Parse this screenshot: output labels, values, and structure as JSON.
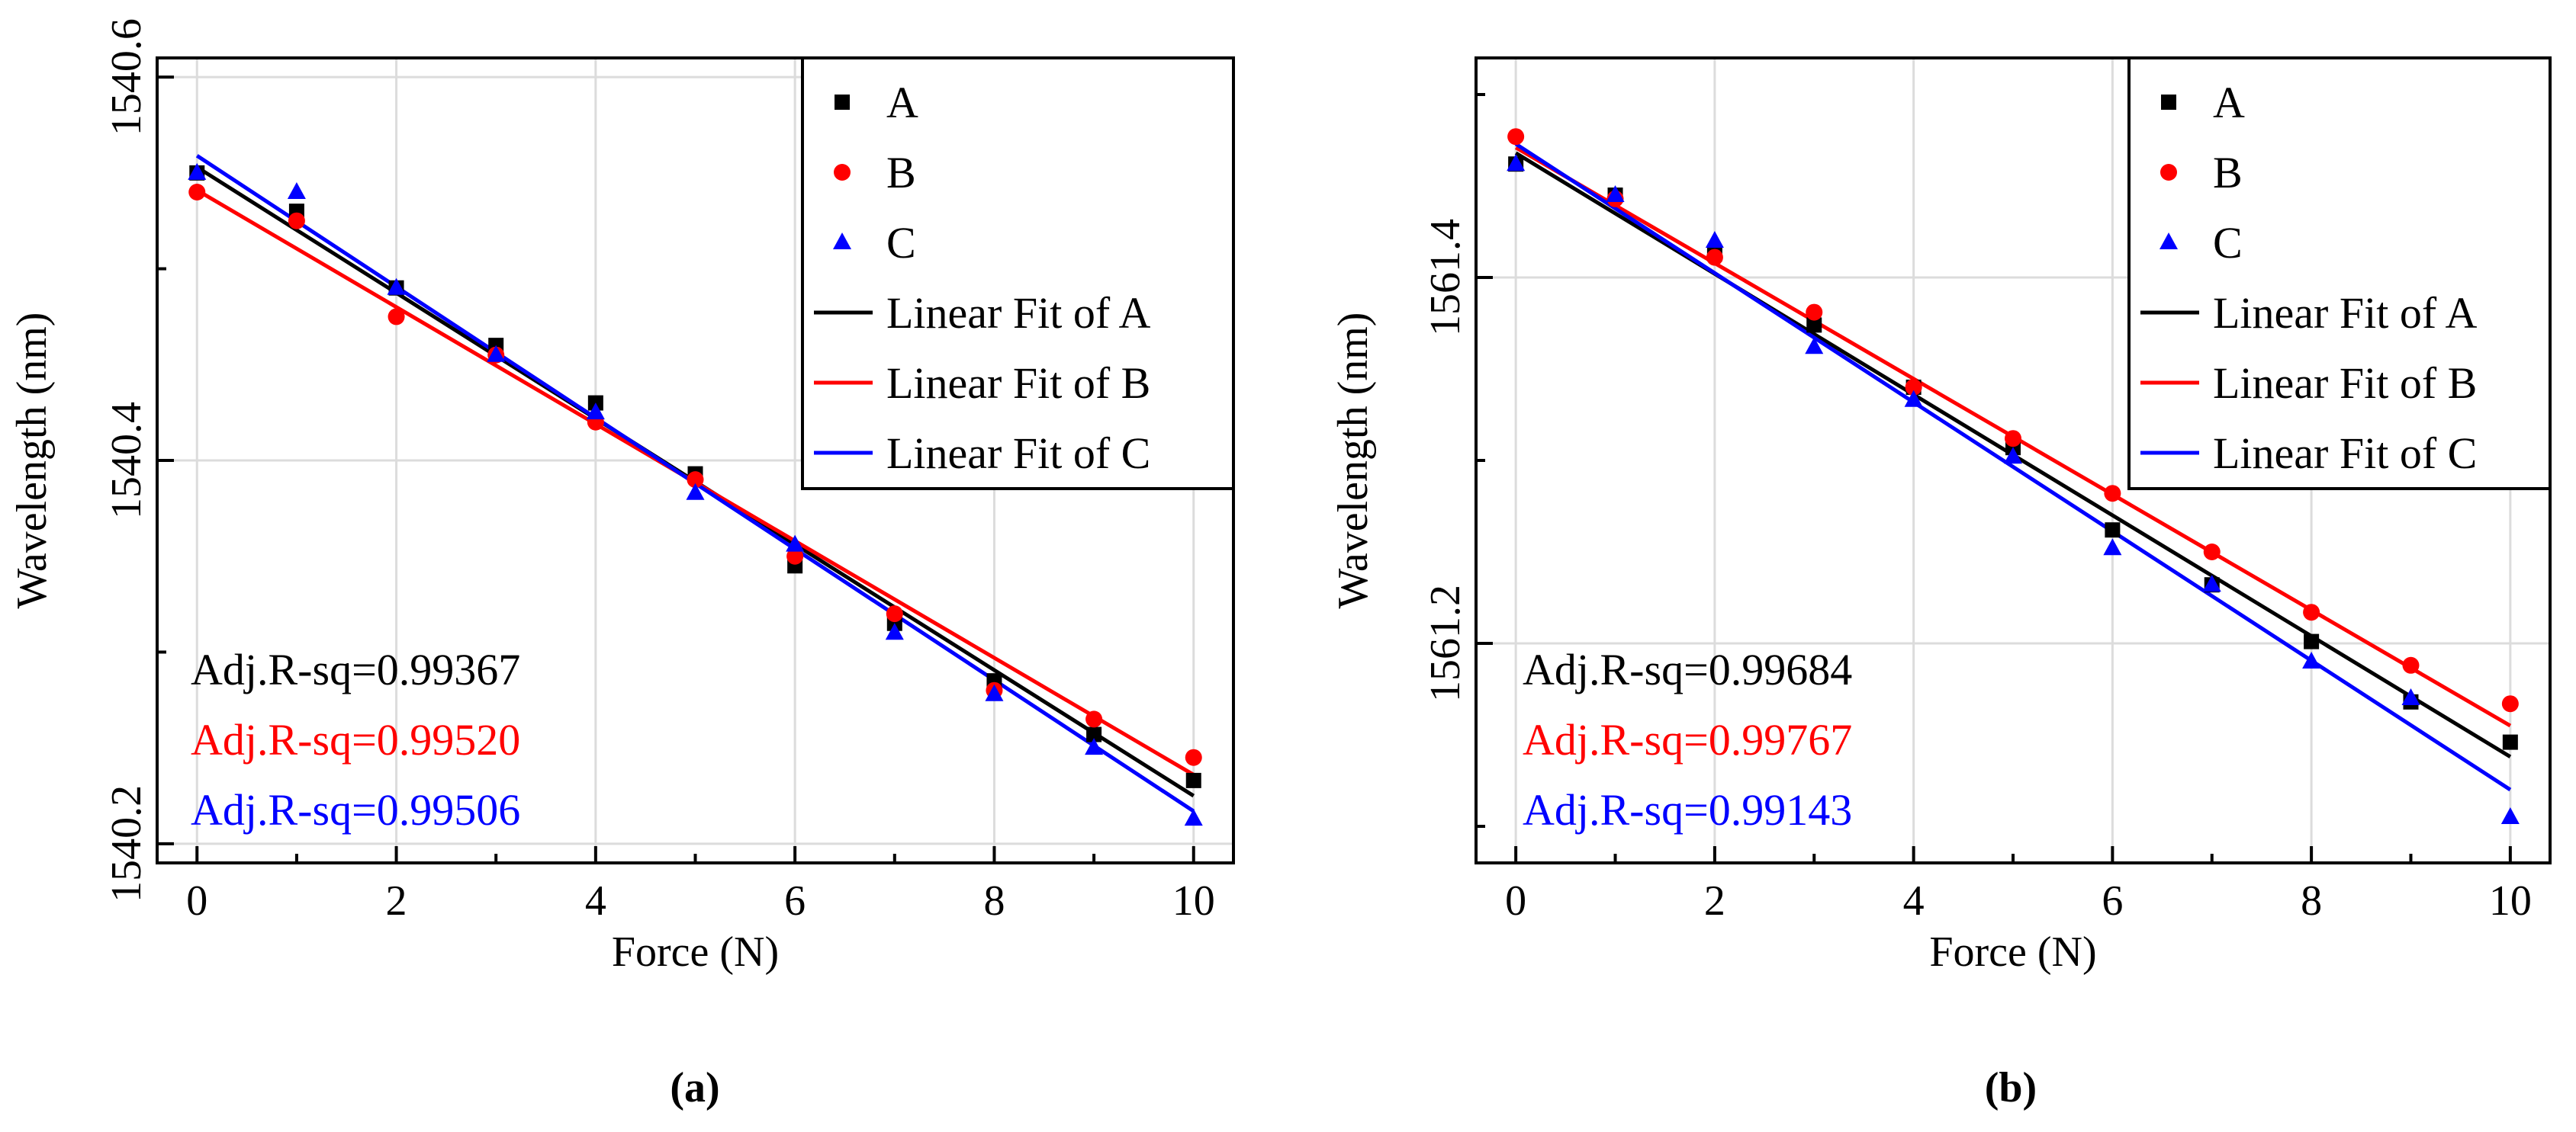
{
  "chart_data": [
    {
      "type": "scatter",
      "panel_label": "(a)",
      "xlabel": "Force (N)",
      "ylabel": "Wavelength (nm)",
      "xlim": [
        -0.4,
        10.4
      ],
      "ylim": [
        1540.19,
        1540.61
      ],
      "xticks": [
        0,
        2,
        4,
        6,
        8,
        10
      ],
      "xticklabels": [
        "0",
        "2",
        "4",
        "6",
        "8",
        "10"
      ],
      "yticks": [
        1540.2,
        1540.4,
        1540.6
      ],
      "yticklabels": [
        "1540.2",
        "1540.4",
        "1540.6"
      ],
      "grid": true,
      "legend_position": "top-right",
      "x": [
        0,
        1,
        2,
        3,
        4,
        5,
        6,
        7,
        8,
        9,
        10
      ],
      "series": [
        {
          "name": "A",
          "marker": "square",
          "color": "#000000",
          "values": [
            1540.55,
            1540.53,
            1540.49,
            1540.46,
            1540.43,
            1540.393,
            1540.345,
            1540.315,
            1540.285,
            1540.257,
            1540.233
          ]
        },
        {
          "name": "B",
          "marker": "circle",
          "color": "#ff0000",
          "values": [
            1540.54,
            1540.525,
            1540.475,
            1540.455,
            1540.42,
            1540.39,
            1540.35,
            1540.32,
            1540.28,
            1540.265,
            1540.245
          ]
        },
        {
          "name": "C",
          "marker": "triangle",
          "color": "#0000ff",
          "values": [
            1540.55,
            1540.54,
            1540.49,
            1540.455,
            1540.425,
            1540.383,
            1540.356,
            1540.31,
            1540.278,
            1540.25,
            1540.213
          ]
        }
      ],
      "fits": [
        {
          "name": "Linear Fit of A",
          "color": "#000000",
          "start": [
            0,
            1540.553
          ],
          "end": [
            10,
            1540.225
          ]
        },
        {
          "name": "Linear Fit of B",
          "color": "#ff0000",
          "start": [
            0,
            1540.541
          ],
          "end": [
            10,
            1540.236
          ]
        },
        {
          "name": "Linear Fit of C",
          "color": "#0000ff",
          "start": [
            0,
            1540.559
          ],
          "end": [
            10,
            1540.217
          ]
        }
      ],
      "annotations": [
        {
          "text": "Adj.R-sq=0.99367",
          "color": "#000000"
        },
        {
          "text": "Adj.R-sq=0.99520",
          "color": "#ff0000"
        },
        {
          "text": "Adj.R-sq=0.99506",
          "color": "#0000ff"
        }
      ]
    },
    {
      "type": "scatter",
      "panel_label": "(b)",
      "xlabel": "Force (N)",
      "ylabel": "Wavelength (nm)",
      "xlim": [
        -0.4,
        10.4
      ],
      "ylim": [
        1561.08,
        1561.52
      ],
      "xticks": [
        0,
        2,
        4,
        6,
        8,
        10
      ],
      "xticklabels": [
        "0",
        "2",
        "4",
        "6",
        "8",
        "10"
      ],
      "yticks": [
        1561.2,
        1561.4
      ],
      "yticklabels": [
        "1561.2",
        "1561.4"
      ],
      "grid": true,
      "legend_position": "top-right",
      "x": [
        0,
        1,
        2,
        3,
        4,
        5,
        6,
        7,
        8,
        9,
        10
      ],
      "series": [
        {
          "name": "A",
          "marker": "square",
          "color": "#000000",
          "values": [
            1561.462,
            1561.445,
            1561.413,
            1561.374,
            1561.34,
            1561.307,
            1561.262,
            1561.232,
            1561.201,
            1561.168,
            1561.146
          ]
        },
        {
          "name": "B",
          "marker": "circle",
          "color": "#ff0000",
          "values": [
            1561.477,
            1561.443,
            1561.411,
            1561.381,
            1561.34,
            1561.312,
            1561.282,
            1561.25,
            1561.217,
            1561.188,
            1561.167
          ]
        },
        {
          "name": "C",
          "marker": "triangle",
          "color": "#0000ff",
          "values": [
            1561.462,
            1561.445,
            1561.42,
            1561.362,
            1561.333,
            1561.302,
            1561.252,
            1561.232,
            1561.19,
            1561.17,
            1561.105
          ]
        }
      ],
      "fits": [
        {
          "name": "Linear Fit of A",
          "color": "#000000",
          "start": [
            0,
            1561.468
          ],
          "end": [
            10,
            1561.138
          ]
        },
        {
          "name": "Linear Fit of B",
          "color": "#ff0000",
          "start": [
            0,
            1561.471
          ],
          "end": [
            10,
            1561.155
          ]
        },
        {
          "name": "Linear Fit of C",
          "color": "#0000ff",
          "start": [
            0,
            1561.473
          ],
          "end": [
            10,
            1561.12
          ]
        }
      ],
      "annotations": [
        {
          "text": "Adj.R-sq=0.99684",
          "color": "#000000"
        },
        {
          "text": "Adj.R-sq=0.99767",
          "color": "#ff0000"
        },
        {
          "text": "Adj.R-sq=0.99143",
          "color": "#0000ff"
        }
      ]
    }
  ]
}
